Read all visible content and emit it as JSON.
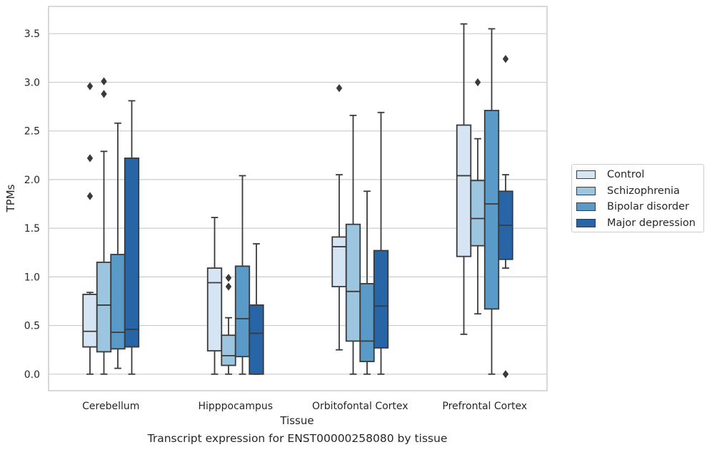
{
  "chart_data": {
    "type": "box",
    "caption": "Transcript expression for ENST00000258080 by tissue",
    "xlabel": "Tissue",
    "ylabel": "TPMs",
    "ylim": [
      -0.17,
      3.78
    ],
    "yticks": [
      "0.0",
      "0.5",
      "1.0",
      "1.5",
      "2.0",
      "2.5",
      "3.0",
      "3.5"
    ],
    "grid": "horizontal",
    "legend_position": "right",
    "categories": [
      "Cerebellum",
      "Hipppocampus",
      "Orbitofontal Cortex",
      "Prefrontal Cortex"
    ],
    "series": [
      {
        "name": "Control",
        "color": "#d6e5f4",
        "boxes": [
          {
            "whislo": 0.0,
            "q1": 0.28,
            "med": 0.44,
            "q3": 0.82,
            "whishi": 0.84,
            "fliers": [
              1.83,
              2.22,
              2.96
            ]
          },
          {
            "whislo": 0.0,
            "q1": 0.24,
            "med": 0.94,
            "q3": 1.09,
            "whishi": 1.61,
            "fliers": []
          },
          {
            "whislo": 0.25,
            "q1": 0.9,
            "med": 1.31,
            "q3": 1.41,
            "whishi": 2.05,
            "fliers": [
              2.94
            ]
          },
          {
            "whislo": 0.41,
            "q1": 1.21,
            "med": 2.04,
            "q3": 2.56,
            "whishi": 3.6,
            "fliers": []
          }
        ]
      },
      {
        "name": "Schizophrenia",
        "color": "#9cc5df",
        "boxes": [
          {
            "whislo": 0.0,
            "q1": 0.23,
            "med": 0.71,
            "q3": 1.15,
            "whishi": 2.29,
            "fliers": [
              2.88,
              3.01
            ]
          },
          {
            "whislo": 0.0,
            "q1": 0.09,
            "med": 0.19,
            "q3": 0.4,
            "whishi": 0.58,
            "fliers": [
              0.9,
              0.99
            ]
          },
          {
            "whislo": 0.0,
            "q1": 0.34,
            "med": 0.85,
            "q3": 1.54,
            "whishi": 2.66,
            "fliers": []
          },
          {
            "whislo": 0.62,
            "q1": 1.32,
            "med": 1.6,
            "q3": 1.99,
            "whishi": 2.42,
            "fliers": [
              3.0
            ]
          }
        ]
      },
      {
        "name": "Bipolar disorder",
        "color": "#5a9ac8",
        "boxes": [
          {
            "whislo": 0.06,
            "q1": 0.26,
            "med": 0.43,
            "q3": 1.23,
            "whishi": 2.58,
            "fliers": []
          },
          {
            "whislo": 0.0,
            "q1": 0.18,
            "med": 0.57,
            "q3": 1.11,
            "whishi": 2.04,
            "fliers": []
          },
          {
            "whislo": 0.0,
            "q1": 0.13,
            "med": 0.34,
            "q3": 0.93,
            "whishi": 1.88,
            "fliers": []
          },
          {
            "whislo": 0.0,
            "q1": 0.67,
            "med": 1.75,
            "q3": 2.71,
            "whishi": 3.55,
            "fliers": []
          }
        ]
      },
      {
        "name": "Major depression",
        "color": "#2765a6",
        "boxes": [
          {
            "whislo": 0.0,
            "q1": 0.28,
            "med": 0.46,
            "q3": 2.22,
            "whishi": 2.81,
            "fliers": []
          },
          {
            "whislo": 0.0,
            "q1": 0.0,
            "med": 0.42,
            "q3": 0.71,
            "whishi": 1.34,
            "fliers": []
          },
          {
            "whislo": 0.0,
            "q1": 0.27,
            "med": 0.7,
            "q3": 1.27,
            "whishi": 2.69,
            "fliers": []
          },
          {
            "whislo": 1.09,
            "q1": 1.18,
            "med": 1.53,
            "q3": 1.88,
            "whishi": 2.05,
            "fliers": [
              0.0,
              3.24
            ]
          }
        ]
      }
    ]
  }
}
